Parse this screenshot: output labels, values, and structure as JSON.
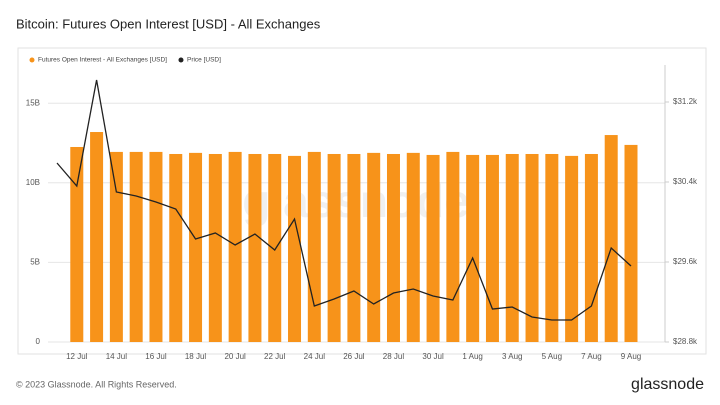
{
  "chart_data": {
    "type": "bar",
    "title": "Bitcoin: Futures Open Interest [USD] - All Exchanges",
    "watermark": "glassnode",
    "footer": "© 2023 Glassnode. All Rights Reserved.",
    "logo": "glassnode",
    "categories": [
      null,
      "12 Jul",
      null,
      "14 Jul",
      null,
      "16 Jul",
      null,
      "18 Jul",
      null,
      "20 Jul",
      null,
      "22 Jul",
      null,
      "24 Jul",
      null,
      "26 Jul",
      null,
      "28 Jul",
      null,
      "30 Jul",
      null,
      "1 Aug",
      null,
      "3 Aug",
      null,
      "5 Aug",
      null,
      "7 Aug",
      null,
      "9 Aug"
    ],
    "series": [
      {
        "name": "Futures Open Interest - All Exchanges [USD]",
        "type": "bar",
        "color": "#f7931a",
        "values": [
          null,
          12250000000,
          13190000000,
          11940000000,
          11940000000,
          11940000000,
          11810000000,
          11880000000,
          11810000000,
          11940000000,
          11810000000,
          11810000000,
          11690000000,
          11940000000,
          11810000000,
          11810000000,
          11880000000,
          11810000000,
          11880000000,
          11750000000,
          11940000000,
          11750000000,
          11750000000,
          11810000000,
          11810000000,
          11810000000,
          11690000000,
          11810000000,
          13000000000,
          12380000000
        ]
      },
      {
        "name": "Price [USD]",
        "type": "line",
        "color": "#222222",
        "axis": "y2",
        "values": [
          30590,
          30360,
          31420,
          30300,
          30260,
          30200,
          30130,
          29830,
          29890,
          29770,
          29880,
          29720,
          30030,
          29160,
          29230,
          29310,
          29180,
          29290,
          29330,
          29260,
          29220,
          29640,
          29130,
          29150,
          29050,
          29020,
          29020,
          29160,
          29740,
          29560
        ]
      }
    ],
    "ylim": [
      0,
      17400000000
    ],
    "yticks": [
      {
        "value": 0,
        "label": "0"
      },
      {
        "value": 5000000000,
        "label": "5B"
      },
      {
        "value": 10000000000,
        "label": "10B"
      },
      {
        "value": 15000000000,
        "label": "15B"
      }
    ],
    "y2lim": [
      28800,
      31570
    ],
    "y2ticks": [
      {
        "value": 28800,
        "label": "$28.8k"
      },
      {
        "value": 29600,
        "label": "$29.6k"
      },
      {
        "value": 30400,
        "label": "$30.4k"
      },
      {
        "value": 31200,
        "label": "$31.2k"
      }
    ],
    "grid": true,
    "legend": "top-left"
  }
}
